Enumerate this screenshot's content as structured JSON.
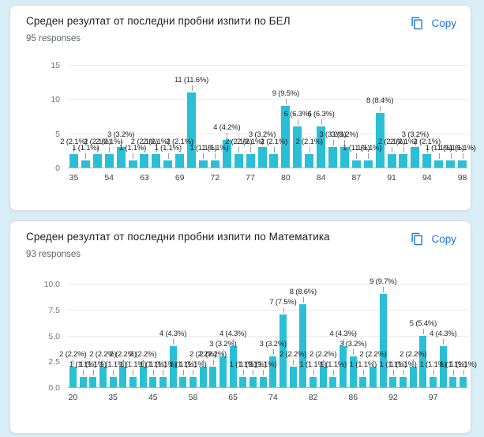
{
  "colors": {
    "bar": "#2abfd5",
    "link": "#1a73e8",
    "page_bg": "#d8edf5",
    "card_bg": "#ffffff",
    "grid": "#e9e9e9",
    "axis": "#b0b3b8",
    "bar_label": "#1f1f1f",
    "x_tick": "#3c4043",
    "y_tick": "#757575",
    "title": "#202124",
    "subtitle": "#5f6368"
  },
  "cards": [
    {
      "title": "Среден резултат от последни пробни изпити по БЕЛ",
      "responses": "95 responses",
      "copy_label": "Copy",
      "copy_icon": "content-copy"
    },
    {
      "title": "Среден резултат от последни пробни изпити по Математика",
      "responses": "93 responses",
      "copy_label": "Copy",
      "copy_icon": "content-copy"
    }
  ],
  "chart_data": [
    {
      "type": "bar",
      "title": "Среден резултат от последни пробни изпити по БЕЛ",
      "subtitle": "95 responses",
      "total_responses": 95,
      "ylim": [
        0,
        15
      ],
      "grid": true,
      "values": [
        2,
        1,
        2,
        2,
        3,
        1,
        2,
        2,
        1,
        2,
        11,
        1,
        1,
        4,
        2,
        2,
        3,
        2,
        9,
        6,
        2,
        6,
        3,
        3,
        1,
        1,
        8,
        2,
        2,
        3,
        2,
        1,
        1,
        1
      ],
      "bar_labels": [
        "2 (2.1%)",
        "1 (1.1%)",
        "2 (2.1%)",
        "2 (2.1%)",
        "3 (3.2%)",
        "1 (1.1%)",
        "2 (2.1%)",
        "2 (2.1%)",
        "1 (1.1%)",
        "2 (2.1%)",
        "11 (11.6%)",
        "1 (1.1%)",
        "1 (1.1%)",
        "4 (4.2%)",
        "2 (2.1%)",
        "2 (2.1%)",
        "3 (3.2%)",
        "2 (2.1%)",
        "9 (9.5%)",
        "6 (6.3%)",
        "2 (2.1%)",
        "6 (6.3%)",
        "3 (3.2%)",
        "3 (3.2%)",
        "1 (1.1%)",
        "1 (1.1%)",
        "8 (8.4%)",
        "2 (2.1%)",
        "2 (2.1%)",
        "3 (3.2%)",
        "2 (2.1%)",
        "1 (1.1%)",
        "1 (1.1%)",
        "1 (1.1%)"
      ],
      "x_ticks": [
        {
          "index": 0,
          "label": "35"
        },
        {
          "index": 3,
          "label": "54"
        },
        {
          "index": 6,
          "label": "63"
        },
        {
          "index": 9,
          "label": "69"
        },
        {
          "index": 12,
          "label": "72"
        },
        {
          "index": 15,
          "label": "77"
        },
        {
          "index": 18,
          "label": "80"
        },
        {
          "index": 21,
          "label": "84"
        },
        {
          "index": 24,
          "label": "87"
        },
        {
          "index": 27,
          "label": "91"
        },
        {
          "index": 30,
          "label": "94"
        },
        {
          "index": 33,
          "label": "98"
        }
      ],
      "y_ticks": [
        {
          "value": 0,
          "label": "0"
        },
        {
          "value": 5,
          "label": "5"
        },
        {
          "value": 10,
          "label": "10"
        },
        {
          "value": 15,
          "label": "15"
        }
      ]
    },
    {
      "type": "bar",
      "title": "Среден резултат от последни пробни изпити по Математика",
      "subtitle": "93 responses",
      "total_responses": 93,
      "ylim": [
        0,
        10
      ],
      "grid": true,
      "values": [
        2,
        1,
        1,
        2,
        1,
        2,
        1,
        2,
        1,
        1,
        4,
        1,
        1,
        2,
        2,
        3,
        4,
        1,
        1,
        1,
        3,
        7,
        2,
        8,
        1,
        2,
        1,
        4,
        3,
        1,
        2,
        9,
        1,
        1,
        2,
        5,
        1,
        4,
        1,
        1
      ],
      "bar_labels": [
        "2 (2.2%)",
        "1 (1.1%)",
        "1 (1.1%)",
        "2 (2.2%)",
        "1 (1.1%)",
        "2 (2.2%)",
        "1 (1.1%)",
        "2 (2.2%)",
        "1 (1.1%)",
        "1 (1.1%)",
        "4 (4.3%)",
        "1 (1.1%)",
        "1 (1.1%)",
        "2 (2.2%)",
        "2 (2.2%)",
        "3 (3.2%)",
        "4 (4.3%)",
        "1 (1.1%)",
        "1 (1.1%)",
        "1 (1.1%)",
        "3 (3.2%)",
        "7 (7.5%)",
        "2 (2.2%)",
        "8 (8.6%)",
        "1 (1.1%)",
        "2 (2.2%)",
        "1 (1.1%)",
        "4 (4.3%)",
        "3 (3.2%)",
        "1 (1.1%)",
        "2 (2.2%)",
        "9 (9.7%)",
        "1 (1.1%)",
        "1 (1.1%)",
        "2 (2.2%)",
        "5 (5.4%)",
        "1 (1.1%)",
        "4 (4.3%)",
        "1 (1.1%)",
        "1 (1.1%)"
      ],
      "x_ticks": [
        {
          "index": 0,
          "label": "20"
        },
        {
          "index": 4,
          "label": "35"
        },
        {
          "index": 8,
          "label": "45"
        },
        {
          "index": 12,
          "label": "58"
        },
        {
          "index": 16,
          "label": "65"
        },
        {
          "index": 20,
          "label": "74"
        },
        {
          "index": 24,
          "label": "82"
        },
        {
          "index": 28,
          "label": "86"
        },
        {
          "index": 32,
          "label": "92"
        },
        {
          "index": 36,
          "label": "97"
        }
      ],
      "y_ticks": [
        {
          "value": 0,
          "label": "0.0"
        },
        {
          "value": 2.5,
          "label": "2.5"
        },
        {
          "value": 5,
          "label": "5.0"
        },
        {
          "value": 7.5,
          "label": "7.5"
        },
        {
          "value": 10,
          "label": "10.0"
        }
      ]
    }
  ]
}
